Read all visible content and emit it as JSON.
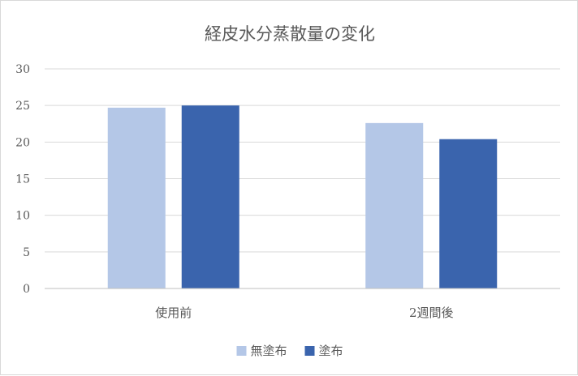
{
  "chart_data": {
    "type": "bar",
    "title": "経皮水分蒸散量の変化",
    "categories": [
      "使用前",
      "2週間後"
    ],
    "series": [
      {
        "name": "無塗布",
        "values": [
          24.7,
          22.6
        ],
        "color": "#b4c7e7"
      },
      {
        "name": "塗布",
        "values": [
          25.0,
          20.4
        ],
        "color": "#3a64ad"
      }
    ],
    "ylim": [
      0,
      30
    ],
    "yticks": [
      0,
      5,
      10,
      15,
      20,
      25,
      30
    ],
    "grid": true,
    "legend_position": "bottom"
  }
}
